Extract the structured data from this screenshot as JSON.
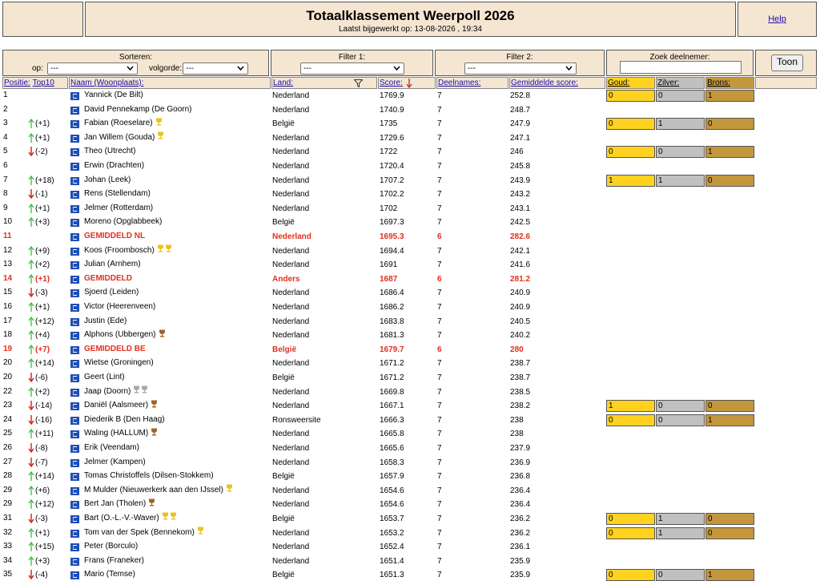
{
  "header": {
    "title": "Totaalklassement Weerpoll 2026",
    "updated": "Laatst bijgewerkt op: 13-08-2026 , 19:34",
    "help": "Help"
  },
  "controls": {
    "sort_label": "Sorteren:",
    "op_label": "op:",
    "op_value": "---",
    "order_label": "volgorde:",
    "order_value": "---",
    "filter1_label": "Filter 1:",
    "filter1_value": "---",
    "filter2_label": "Filter 2:",
    "filter2_value": "---",
    "search_label": "Zoek deelnemer:",
    "button": "Toon"
  },
  "table": {
    "columns": {
      "position": "Positie:",
      "top10": "Top10",
      "name": "Naam (Woonplaats):",
      "land": "Land:",
      "score": "Score:",
      "entries": "Deelnames:",
      "avg": "Gemiddelde score:",
      "gold": "Goud:",
      "silver": "Zilver:",
      "bronze": "Brons:"
    },
    "rows": [
      {
        "pos": 1,
        "name": "Yannick (De Bilt)",
        "land": "Nederland",
        "score": 1769.9,
        "entries": 7,
        "avg": 252.8,
        "medals": [
          0,
          0,
          1
        ]
      },
      {
        "pos": 2,
        "name": "David Pennekamp (De Goorn)",
        "land": "Nederland",
        "score": 1740.9,
        "entries": 7,
        "avg": 248.7
      },
      {
        "pos": 3,
        "change": {
          "dir": "up",
          "text": "(+1)"
        },
        "name": "Fabian (Roeselare)",
        "trophies": [
          "gold"
        ],
        "land": "België",
        "score": 1735,
        "entries": 7,
        "avg": 247.9,
        "medals": [
          0,
          1,
          0
        ]
      },
      {
        "pos": 4,
        "change": {
          "dir": "up",
          "text": "(+1)"
        },
        "name": "Jan Willem (Gouda)",
        "trophies": [
          "gold"
        ],
        "land": "Nederland",
        "score": 1729.6,
        "entries": 7,
        "avg": 247.1
      },
      {
        "pos": 5,
        "change": {
          "dir": "down",
          "text": "(-2)"
        },
        "name": "Theo (Utrecht)",
        "land": "Nederland",
        "score": 1722,
        "entries": 7,
        "avg": 246,
        "medals": [
          0,
          0,
          1
        ]
      },
      {
        "pos": 6,
        "name": "Erwin (Drachten)",
        "land": "Nederland",
        "score": 1720.4,
        "entries": 7,
        "avg": 245.8
      },
      {
        "pos": 7,
        "change": {
          "dir": "up",
          "text": "(+18)"
        },
        "name": "Johan (Leek)",
        "land": "Nederland",
        "score": 1707.2,
        "entries": 7,
        "avg": 243.9,
        "medals": [
          1,
          1,
          0
        ]
      },
      {
        "pos": 8,
        "change": {
          "dir": "down",
          "text": "(-1)"
        },
        "name": "Rens (Stellendam)",
        "land": "Nederland",
        "score": 1702.2,
        "entries": 7,
        "avg": 243.2
      },
      {
        "pos": 9,
        "change": {
          "dir": "up",
          "text": "(+1)"
        },
        "name": "Jelmer (Rotterdam)",
        "land": "Nederland",
        "score": 1702,
        "entries": 7,
        "avg": 243.1
      },
      {
        "pos": 10,
        "change": {
          "dir": "up",
          "text": "(+3)"
        },
        "name": "Moreno (Opglabbeek)",
        "land": "België",
        "score": 1697.3,
        "entries": 7,
        "avg": 242.5
      },
      {
        "pos": 11,
        "name": "GEMIDDELD NL",
        "land": "Nederland",
        "score": 1695.3,
        "entries": 6,
        "avg": 282.6,
        "highlight": true
      },
      {
        "pos": 12,
        "change": {
          "dir": "up",
          "text": "(+9)"
        },
        "name": "Koos (Froombosch)",
        "trophies": [
          "gold",
          "gold"
        ],
        "land": "Nederland",
        "score": 1694.4,
        "entries": 7,
        "avg": 242.1
      },
      {
        "pos": 13,
        "change": {
          "dir": "up",
          "text": "(+2)"
        },
        "name": "Julian (Arnhem)",
        "land": "Nederland",
        "score": 1691,
        "entries": 7,
        "avg": 241.6
      },
      {
        "pos": 14,
        "change": {
          "dir": "up",
          "text": "(+1)"
        },
        "name": "GEMIDDELD",
        "land": "Anders",
        "score": 1687,
        "entries": 6,
        "avg": 281.2,
        "highlight": true
      },
      {
        "pos": 15,
        "change": {
          "dir": "down",
          "text": "(-3)"
        },
        "name": "Sjoerd (Leiden)",
        "land": "Nederland",
        "score": 1686.4,
        "entries": 7,
        "avg": 240.9
      },
      {
        "pos": 16,
        "change": {
          "dir": "up",
          "text": "(+1)"
        },
        "name": "Victor (Heerenveen)",
        "land": "Nederland",
        "score": 1686.2,
        "entries": 7,
        "avg": 240.9
      },
      {
        "pos": 17,
        "change": {
          "dir": "up",
          "text": "(+12)"
        },
        "name": "Justin (Ede)",
        "land": "Nederland",
        "score": 1683.8,
        "entries": 7,
        "avg": 240.5
      },
      {
        "pos": 18,
        "change": {
          "dir": "up",
          "text": "(+4)"
        },
        "name": "Alphons (Ubbergen)",
        "trophies": [
          "bronze"
        ],
        "land": "Nederland",
        "score": 1681.3,
        "entries": 7,
        "avg": 240.2
      },
      {
        "pos": 19,
        "change": {
          "dir": "up",
          "text": "(+7)"
        },
        "name": "GEMIDDELD BE",
        "land": "België",
        "score": 1679.7,
        "entries": 6,
        "avg": 280,
        "highlight": true
      },
      {
        "pos": 20,
        "change": {
          "dir": "up",
          "text": "(+14)"
        },
        "name": "Wietse (Groningen)",
        "land": "Nederland",
        "score": 1671.2,
        "entries": 7,
        "avg": 238.7
      },
      {
        "pos": 20,
        "change": {
          "dir": "down",
          "text": "(-6)"
        },
        "name": "Geert (Lint)",
        "land": "België",
        "score": 1671.2,
        "entries": 7,
        "avg": 238.7
      },
      {
        "pos": 22,
        "change": {
          "dir": "up",
          "text": "(+2)"
        },
        "name": "Jaap (Doorn)",
        "trophies": [
          "silver",
          "silver"
        ],
        "land": "Nederland",
        "score": 1669.8,
        "entries": 7,
        "avg": 238.5
      },
      {
        "pos": 23,
        "change": {
          "dir": "down",
          "text": "(-14)"
        },
        "name": "Daniël (Aalsmeer)",
        "trophies": [
          "bronze"
        ],
        "land": "Nederland",
        "score": 1667.1,
        "entries": 7,
        "avg": 238.2,
        "medals": [
          1,
          0,
          0
        ]
      },
      {
        "pos": 24,
        "change": {
          "dir": "down",
          "text": "(-16)"
        },
        "name": "Diederik B (Den Haag)",
        "land": "Ronsweersite",
        "score": 1666.3,
        "entries": 7,
        "avg": 238,
        "medals": [
          0,
          0,
          1
        ]
      },
      {
        "pos": 25,
        "change": {
          "dir": "up",
          "text": "(+11)"
        },
        "name": "Waling (HALLUM)",
        "trophies": [
          "bronze"
        ],
        "land": "Nederland",
        "score": 1665.8,
        "entries": 7,
        "avg": 238
      },
      {
        "pos": 26,
        "change": {
          "dir": "down",
          "text": "(-8)"
        },
        "name": "Erik (Veendam)",
        "land": "Nederland",
        "score": 1665.6,
        "entries": 7,
        "avg": 237.9
      },
      {
        "pos": 27,
        "change": {
          "dir": "down",
          "text": "(-7)"
        },
        "name": "Jelmer (Kampen)",
        "land": "Nederland",
        "score": 1658.3,
        "entries": 7,
        "avg": 236.9
      },
      {
        "pos": 28,
        "change": {
          "dir": "up",
          "text": "(+14)"
        },
        "name": "Tomas Christoffels (Dilsen-Stokkem)",
        "land": "België",
        "score": 1657.9,
        "entries": 7,
        "avg": 236.8
      },
      {
        "pos": 29,
        "change": {
          "dir": "up",
          "text": "(+6)"
        },
        "name": "M Mulder (Nieuwerkerk aan den IJssel)",
        "trophies": [
          "gold"
        ],
        "land": "Nederland",
        "score": 1654.6,
        "entries": 7,
        "avg": 236.4
      },
      {
        "pos": 29,
        "change": {
          "dir": "up",
          "text": "(+12)"
        },
        "name": "Bert Jan (Tholen)",
        "trophies": [
          "bronze"
        ],
        "land": "Nederland",
        "score": 1654.6,
        "entries": 7,
        "avg": 236.4
      },
      {
        "pos": 31,
        "change": {
          "dir": "down",
          "text": "(-3)"
        },
        "name": "Bart (O.-L.-V.-Waver)",
        "trophies": [
          "gold",
          "gold"
        ],
        "land": "België",
        "score": 1653.7,
        "entries": 7,
        "avg": 236.2,
        "medals": [
          0,
          1,
          0
        ]
      },
      {
        "pos": 32,
        "change": {
          "dir": "up",
          "text": "(+1)"
        },
        "name": "Tom van der Spek (Bennekom)",
        "trophies": [
          "gold"
        ],
        "land": "Nederland",
        "score": 1653.2,
        "entries": 7,
        "avg": 236.2,
        "medals": [
          0,
          1,
          0
        ]
      },
      {
        "pos": 33,
        "change": {
          "dir": "up",
          "text": "(+15)"
        },
        "name": "Peter (Borculo)",
        "land": "Nederland",
        "score": 1652.4,
        "entries": 7,
        "avg": 236.1
      },
      {
        "pos": 34,
        "change": {
          "dir": "up",
          "text": "(+3)"
        },
        "name": "Frans (Franeker)",
        "land": "Nederland",
        "score": 1651.4,
        "entries": 7,
        "avg": 235.9
      },
      {
        "pos": 35,
        "change": {
          "dir": "down",
          "text": "(-4)"
        },
        "name": "Mario (Temse)",
        "land": "België",
        "score": 1651.3,
        "entries": 7,
        "avg": 235.9,
        "medals": [
          0,
          0,
          1
        ]
      }
    ]
  }
}
